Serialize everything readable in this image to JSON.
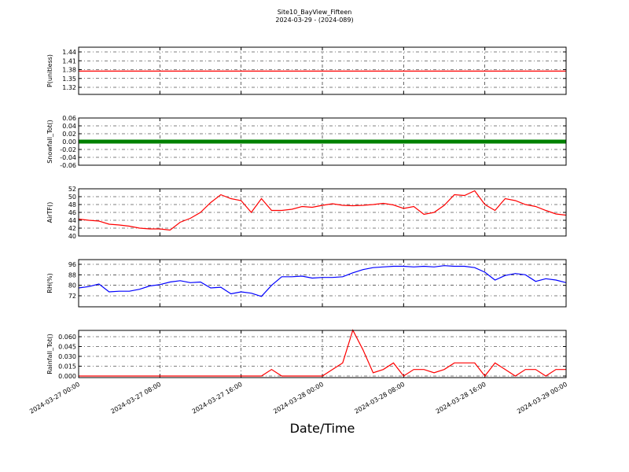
{
  "figure": {
    "title": "Site10_BayView_Fifteen",
    "subtitle": "2024-03-29 - (2024-089)",
    "xlabel": "Date/Time",
    "x": [
      "2024-03-27 00:00",
      "2024-03-27 01:00",
      "2024-03-27 02:00",
      "2024-03-27 03:00",
      "2024-03-27 04:00",
      "2024-03-27 05:00",
      "2024-03-27 06:00",
      "2024-03-27 07:00",
      "2024-03-27 08:00",
      "2024-03-27 09:00",
      "2024-03-27 10:00",
      "2024-03-27 11:00",
      "2024-03-27 12:00",
      "2024-03-27 13:00",
      "2024-03-27 14:00",
      "2024-03-27 15:00",
      "2024-03-27 16:00",
      "2024-03-27 17:00",
      "2024-03-27 18:00",
      "2024-03-27 19:00",
      "2024-03-27 20:00",
      "2024-03-27 21:00",
      "2024-03-27 22:00",
      "2024-03-27 23:00",
      "2024-03-28 00:00",
      "2024-03-28 01:00",
      "2024-03-28 02:00",
      "2024-03-28 03:00",
      "2024-03-28 04:00",
      "2024-03-28 05:00",
      "2024-03-28 06:00",
      "2024-03-28 07:00",
      "2024-03-28 08:00",
      "2024-03-28 09:00",
      "2024-03-28 10:00",
      "2024-03-28 11:00",
      "2024-03-28 12:00",
      "2024-03-28 13:00",
      "2024-03-28 14:00",
      "2024-03-28 15:00",
      "2024-03-28 16:00",
      "2024-03-28 17:00",
      "2024-03-28 18:00",
      "2024-03-28 19:00",
      "2024-03-28 20:00",
      "2024-03-28 21:00",
      "2024-03-28 22:00",
      "2024-03-28 23:00",
      "2024-03-29 00:00"
    ],
    "xlim": [
      "2024-03-27 00:00",
      "2024-03-29 00:00"
    ],
    "xticks": [
      "2024-03-27 00:00",
      "2024-03-27 08:00",
      "2024-03-27 16:00",
      "2024-03-28 00:00",
      "2024-03-28 08:00",
      "2024-03-28 16:00",
      "2024-03-29 00:00"
    ]
  },
  "chart_data": [
    {
      "type": "line",
      "ylabel": "P(unitless)",
      "ylim": [
        1.296,
        1.456
      ],
      "yticks": [
        1.32,
        1.35,
        1.38,
        1.41,
        1.44
      ],
      "grid": true,
      "series": [
        {
          "name": "P",
          "color": "#ff0000",
          "values": [
            1.375,
            1.375,
            1.375,
            1.375,
            1.375,
            1.375,
            1.375,
            1.375,
            1.375,
            1.375,
            1.375,
            1.375,
            1.375,
            1.375,
            1.375,
            1.375,
            1.375,
            1.375,
            1.375,
            1.375,
            1.375,
            1.375,
            1.375,
            1.375,
            1.375,
            1.375,
            1.375,
            1.375,
            1.375,
            1.375,
            1.375,
            1.375,
            1.375,
            1.375,
            1.375,
            1.375,
            1.375,
            1.375,
            1.375,
            1.375,
            1.375,
            1.375,
            1.375,
            1.375,
            1.375,
            1.375,
            1.375,
            1.375,
            1.375
          ]
        }
      ]
    },
    {
      "type": "line",
      "ylabel": "Snowfall_Tot()",
      "ylim": [
        -0.06,
        0.06
      ],
      "yticks": [
        -0.06,
        -0.04,
        -0.02,
        {
          "value": 0,
          "label": "0.00"
        },
        0.02,
        0.04,
        0.06
      ],
      "grid": true,
      "line_width": 5,
      "series": [
        {
          "name": "Snowfall",
          "color": "#008000",
          "values": [
            0,
            0,
            0,
            0,
            0,
            0,
            0,
            0,
            0,
            0,
            0,
            0,
            0,
            0,
            0,
            0,
            0,
            0,
            0,
            0,
            0,
            0,
            0,
            0,
            0,
            0,
            0,
            0,
            0,
            0,
            0,
            0,
            0,
            0,
            0,
            0,
            0,
            0,
            0,
            0,
            0,
            0,
            0,
            0,
            0,
            0,
            0,
            0,
            0
          ]
        }
      ]
    },
    {
      "type": "line",
      "ylabel": "AirTF()",
      "ylim": [
        40,
        52
      ],
      "yticks": [
        40,
        42,
        44,
        46,
        48,
        50,
        52
      ],
      "grid": true,
      "series": [
        {
          "name": "AirT",
          "color": "#ff0000",
          "values": [
            44.3,
            44.0,
            43.8,
            43.0,
            42.8,
            42.5,
            42.0,
            41.8,
            41.8,
            41.5,
            43.5,
            44.5,
            46.0,
            48.5,
            50.5,
            49.5,
            49.0,
            46.0,
            49.5,
            46.5,
            46.5,
            46.8,
            47.5,
            47.3,
            47.8,
            48.2,
            47.8,
            47.7,
            47.8,
            48.0,
            48.3,
            47.9,
            47.0,
            47.5,
            45.5,
            46.0,
            47.8,
            50.5,
            50.3,
            51.5,
            48.0,
            46.5,
            49.5,
            49.0,
            48.0,
            47.5,
            46.5,
            45.6,
            45.3
          ]
        }
      ]
    },
    {
      "type": "line",
      "ylabel": "RH(%)",
      "ylim": [
        63.6,
        99.6
      ],
      "yticks": [
        72,
        80,
        88,
        96
      ],
      "grid": true,
      "series": [
        {
          "name": "RH",
          "color": "#0000ff",
          "values": [
            78,
            79,
            81,
            75,
            75.5,
            75.5,
            77,
            79.5,
            80.5,
            82.5,
            83.5,
            82,
            82.5,
            78,
            78.5,
            73.5,
            75,
            74,
            71.5,
            80,
            86.5,
            86.5,
            87,
            85.5,
            86,
            86,
            86.5,
            89.5,
            92,
            93.5,
            94,
            94.5,
            94.5,
            94,
            94.5,
            94,
            95,
            94.5,
            94.5,
            93.5,
            90,
            84,
            87.5,
            89,
            88,
            83,
            85,
            84,
            82
          ]
        }
      ]
    },
    {
      "type": "line",
      "ylabel": "Rainfall_Tot()",
      "ylim": [
        -0.0024,
        0.0696
      ],
      "yticks": [
        {
          "value": 0,
          "label": "0.000"
        },
        0.015,
        {
          "value": 0.03,
          "label": "0.030"
        },
        0.045,
        {
          "value": 0.06,
          "label": "0.060"
        }
      ],
      "grid": true,
      "series": [
        {
          "name": "Rainfall",
          "color": "#ff0000",
          "values": [
            0,
            0,
            0,
            0,
            0,
            0,
            0,
            0,
            0,
            0,
            0,
            0,
            0,
            0,
            0,
            0,
            0,
            0,
            0,
            0.01,
            0,
            0,
            0,
            0,
            0,
            0.01,
            0.02,
            0.07,
            0.04,
            0.005,
            0.01,
            0.02,
            0,
            0.01,
            0.01,
            0.005,
            0.01,
            0.02,
            0.02,
            0.02,
            0,
            0.02,
            0.01,
            0,
            0.01,
            0.01,
            0,
            0.01,
            0.01
          ]
        }
      ]
    }
  ]
}
